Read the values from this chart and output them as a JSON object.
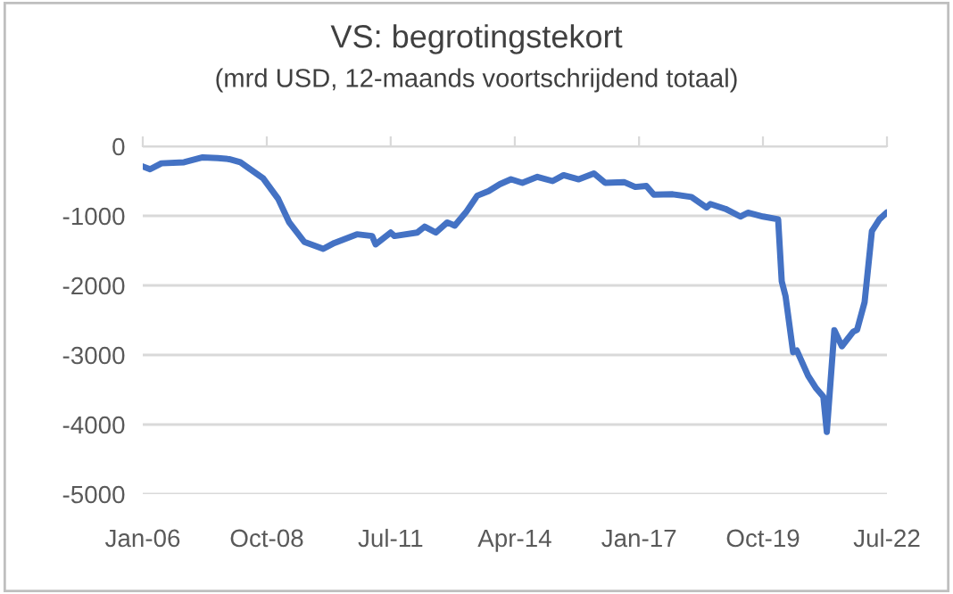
{
  "chart_data": {
    "type": "line",
    "title": "VS: begrotingstekort",
    "subtitle": "(mrd USD, 12-maands voortschrijdend totaal)",
    "x": [
      "2006-01",
      "2006-03",
      "2006-06",
      "2006-12",
      "2007-05",
      "2007-09",
      "2007-12",
      "2008-03",
      "2008-05",
      "2008-09",
      "2009-01",
      "2009-04",
      "2009-08",
      "2010-01",
      "2010-04",
      "2010-10",
      "2011-02",
      "2011-03",
      "2011-07",
      "2011-08",
      "2012-02",
      "2012-04",
      "2012-07",
      "2012-10",
      "2012-12",
      "2013-03",
      "2013-06",
      "2013-09",
      "2013-12",
      "2014-03",
      "2014-06",
      "2014-10",
      "2015-02",
      "2015-05",
      "2015-09",
      "2016-01",
      "2016-04",
      "2016-09",
      "2016-12",
      "2017-03",
      "2017-05",
      "2017-10",
      "2018-03",
      "2018-07",
      "2018-08",
      "2018-12",
      "2019-04",
      "2019-06",
      "2019-10",
      "2020-02",
      "2020-03",
      "2020-04",
      "2020-06",
      "2020-07",
      "2020-10",
      "2020-12",
      "2021-02",
      "2021-03",
      "2021-05",
      "2021-07",
      "2021-10",
      "2021-11",
      "2022-01",
      "2022-03",
      "2022-05",
      "2022-07"
    ],
    "series": [
      {
        "color": "#4472c4",
        "values": [
          -290,
          -330,
          -245,
          -230,
          -160,
          -170,
          -185,
          -230,
          -305,
          -460,
          -755,
          -1095,
          -1375,
          -1475,
          -1390,
          -1265,
          -1290,
          -1410,
          -1240,
          -1290,
          -1240,
          -1155,
          -1240,
          -1095,
          -1140,
          -950,
          -710,
          -645,
          -545,
          -475,
          -525,
          -440,
          -500,
          -415,
          -475,
          -390,
          -525,
          -515,
          -585,
          -570,
          -695,
          -690,
          -730,
          -880,
          -830,
          -900,
          -1010,
          -955,
          -1010,
          -1050,
          -1940,
          -2155,
          -2960,
          -2935,
          -3300,
          -3470,
          -3600,
          -4105,
          -2645,
          -2875,
          -2665,
          -2640,
          -2240,
          -1220,
          -1050,
          -950
        ]
      }
    ],
    "xlim": [
      "2006-01",
      "2022-07"
    ],
    "xticks": [
      {
        "value": "2006-01",
        "label": "Jan-06"
      },
      {
        "value": "2008-10",
        "label": "Oct-08"
      },
      {
        "value": "2011-07",
        "label": "Jul-11"
      },
      {
        "value": "2014-04",
        "label": "Apr-14"
      },
      {
        "value": "2017-01",
        "label": "Jan-17"
      },
      {
        "value": "2019-10",
        "label": "Oct-19"
      },
      {
        "value": "2022-07",
        "label": "Jul-22"
      }
    ],
    "ylim": [
      -5000,
      0
    ],
    "yticks": [
      -5000,
      -4000,
      -3000,
      -2000,
      -1000,
      0
    ],
    "grid": "y",
    "marker": "none",
    "line_style": "solid"
  }
}
